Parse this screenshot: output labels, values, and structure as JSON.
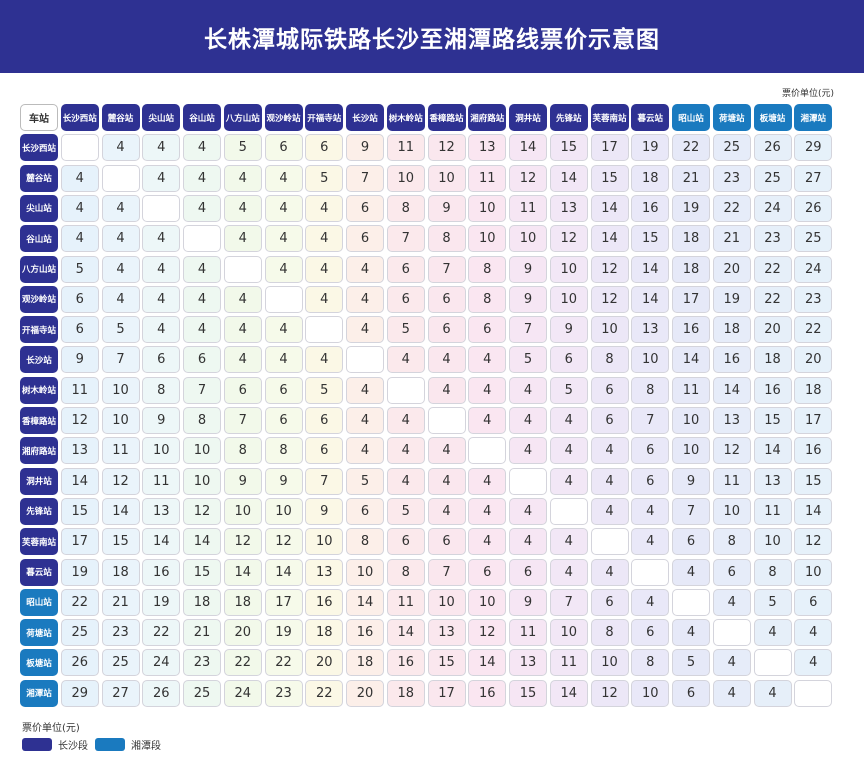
{
  "title": "长株潭城际铁路长沙至湘潭路线票价示意图",
  "unit_top": "票价单位(元)",
  "corner": "车站",
  "stations": [
    "长沙西站",
    "麓谷站",
    "尖山站",
    "谷山站",
    "八方山站",
    "观沙岭站",
    "开福寺站",
    "长沙站",
    "树木岭站",
    "香樟路站",
    "湘府路站",
    "洞井站",
    "先锋站",
    "芙蓉南站",
    "暮云站",
    "昭山站",
    "荷塘站",
    "板塘站",
    "湘潭站"
  ],
  "segments": [
    "cs",
    "cs",
    "cs",
    "cs",
    "cs",
    "cs",
    "cs",
    "cs",
    "cs",
    "cs",
    "cs",
    "cs",
    "cs",
    "cs",
    "cs",
    "xt",
    "xt",
    "xt",
    "xt"
  ],
  "fares": [
    [
      null,
      4,
      4,
      4,
      5,
      6,
      6,
      9,
      11,
      12,
      13,
      14,
      15,
      17,
      19,
      22,
      25,
      26,
      29
    ],
    [
      4,
      null,
      4,
      4,
      4,
      4,
      5,
      7,
      10,
      10,
      11,
      12,
      14,
      15,
      18,
      21,
      23,
      25,
      27
    ],
    [
      4,
      4,
      null,
      4,
      4,
      4,
      4,
      6,
      8,
      9,
      10,
      11,
      13,
      14,
      16,
      19,
      22,
      24,
      26
    ],
    [
      4,
      4,
      4,
      null,
      4,
      4,
      4,
      6,
      7,
      8,
      10,
      10,
      12,
      14,
      15,
      18,
      21,
      23,
      25
    ],
    [
      5,
      4,
      4,
      4,
      null,
      4,
      4,
      4,
      6,
      7,
      8,
      9,
      10,
      12,
      14,
      18,
      20,
      22,
      24
    ],
    [
      6,
      4,
      4,
      4,
      4,
      null,
      4,
      4,
      6,
      6,
      8,
      9,
      10,
      12,
      14,
      17,
      19,
      22,
      23
    ],
    [
      6,
      5,
      4,
      4,
      4,
      4,
      null,
      4,
      5,
      6,
      6,
      7,
      9,
      10,
      13,
      16,
      18,
      20,
      22
    ],
    [
      9,
      7,
      6,
      6,
      4,
      4,
      4,
      null,
      4,
      4,
      4,
      5,
      6,
      8,
      10,
      14,
      16,
      18,
      20
    ],
    [
      11,
      10,
      8,
      7,
      6,
      6,
      5,
      4,
      null,
      4,
      4,
      4,
      5,
      6,
      8,
      11,
      14,
      16,
      18
    ],
    [
      12,
      10,
      9,
      8,
      7,
      6,
      6,
      4,
      4,
      null,
      4,
      4,
      4,
      6,
      7,
      10,
      13,
      15,
      17
    ],
    [
      13,
      11,
      10,
      10,
      8,
      8,
      6,
      4,
      4,
      4,
      null,
      4,
      4,
      4,
      6,
      10,
      12,
      14,
      16
    ],
    [
      14,
      12,
      11,
      10,
      9,
      9,
      7,
      5,
      4,
      4,
      4,
      null,
      4,
      4,
      6,
      9,
      11,
      13,
      15
    ],
    [
      15,
      14,
      13,
      12,
      10,
      10,
      9,
      6,
      5,
      4,
      4,
      4,
      null,
      4,
      4,
      7,
      10,
      11,
      14
    ],
    [
      17,
      15,
      14,
      14,
      12,
      12,
      10,
      8,
      6,
      6,
      4,
      4,
      4,
      null,
      4,
      6,
      8,
      10,
      12
    ],
    [
      19,
      18,
      16,
      15,
      14,
      14,
      13,
      10,
      8,
      7,
      6,
      6,
      4,
      4,
      null,
      4,
      6,
      8,
      10
    ],
    [
      22,
      21,
      19,
      18,
      18,
      17,
      16,
      14,
      11,
      10,
      10,
      9,
      7,
      6,
      4,
      null,
      4,
      5,
      6
    ],
    [
      25,
      23,
      22,
      21,
      20,
      19,
      18,
      16,
      14,
      13,
      12,
      11,
      10,
      8,
      6,
      4,
      null,
      4,
      4
    ],
    [
      26,
      25,
      24,
      23,
      22,
      22,
      20,
      18,
      16,
      15,
      14,
      13,
      11,
      10,
      8,
      5,
      4,
      null,
      4
    ],
    [
      29,
      27,
      26,
      25,
      24,
      23,
      22,
      20,
      18,
      17,
      16,
      15,
      14,
      12,
      10,
      6,
      4,
      4,
      null
    ]
  ],
  "column_tints": [
    "#e6f2fb",
    "#eaf4fb",
    "#edf7f8",
    "#eef8f1",
    "#f2f9ea",
    "#f6faea",
    "#fbf8e6",
    "#fcefe9",
    "#fbe9ec",
    "#fae7ee",
    "#fae6f1",
    "#f6e6f4",
    "#f2e7f6",
    "#ece7f7",
    "#e9e8f8",
    "#e6e9f8",
    "#e6ecf9",
    "#e6eff9",
    "#e6f1fa"
  ],
  "legend": {
    "title": "票价单位(元)",
    "items": [
      {
        "label": "长沙段",
        "color": "#2e3192"
      },
      {
        "label": "湘潭段",
        "color": "#1a7abf"
      }
    ]
  }
}
